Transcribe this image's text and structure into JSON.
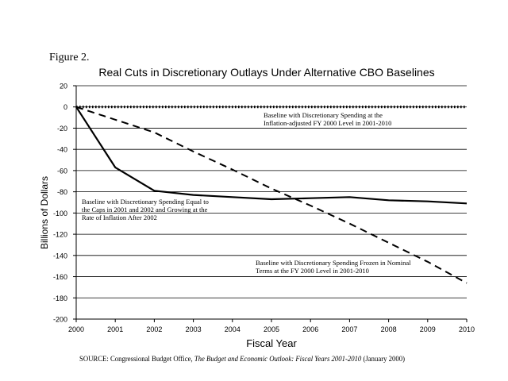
{
  "figure_label": "Figure 2.",
  "source": {
    "prefix": "SOURCE: Congressional Budget Office, ",
    "title": "The Budget and Economic Outlook: Fiscal Years 2001-2010",
    "suffix": " (January 2000)"
  },
  "colors": {
    "line": "#000000",
    "grid": "#000000",
    "background": "#ffffff"
  },
  "chart_data": {
    "type": "line",
    "title": "Real Cuts in Discretionary Outlays Under Alternative CBO Baselines",
    "xlabel": "Fiscal Year",
    "ylabel": "Billions of Dollars",
    "x": [
      2000,
      2001,
      2002,
      2003,
      2004,
      2005,
      2006,
      2007,
      2008,
      2009,
      2010
    ],
    "xlim": [
      2000,
      2010
    ],
    "ylim": [
      -200,
      20
    ],
    "yticks": [
      20,
      0,
      -20,
      -40,
      -60,
      -80,
      -100,
      -120,
      -140,
      -160,
      -180,
      -200
    ],
    "grid": true,
    "series": [
      {
        "style": "dotted",
        "values": [
          0,
          0,
          0,
          0,
          0,
          0,
          0,
          0,
          0,
          0,
          0
        ],
        "annotation": [
          "Baseline with Discretionary Spending at the",
          "Inflation-adjusted FY 2000 Level in 2001-2010"
        ]
      },
      {
        "style": "dashed",
        "values": [
          0,
          -12,
          -24,
          -42,
          -59,
          -77,
          -93,
          -110,
          -128,
          -146,
          -166
        ],
        "annotation": [
          "Baseline with Discretionary Spending Frozen in Nominal",
          "Terms at the FY 2000 Level in 2001-2010"
        ]
      },
      {
        "style": "solid",
        "values": [
          0,
          -57,
          -79,
          -83,
          -85,
          -87,
          -86,
          -85,
          -88,
          -89,
          -91
        ],
        "annotation": [
          "Baseline with Discretionary Spending Equal to",
          "the Caps in 2001 and 2002 and Growing at the",
          "Rate of Inflation After 2002"
        ]
      }
    ]
  }
}
